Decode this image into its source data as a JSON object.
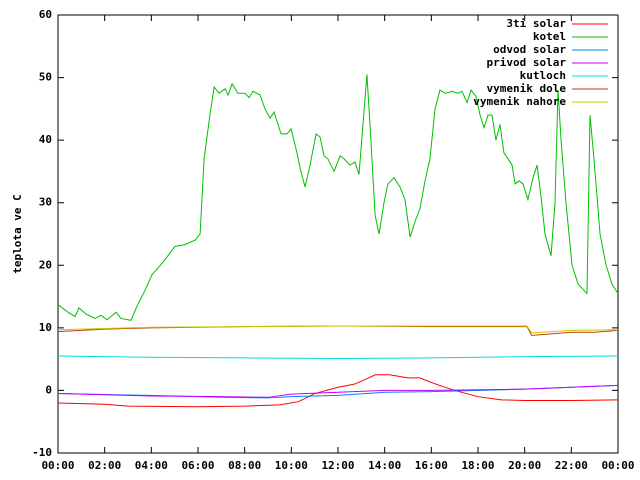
{
  "chart_data": {
    "type": "line",
    "ylabel": "teplota ve C",
    "legend": "top-right",
    "xlim": [
      0,
      24
    ],
    "ylim": [
      -10,
      60
    ],
    "xticks": [
      {
        "value": 0,
        "label": "00:00"
      },
      {
        "value": 2,
        "label": "02:00"
      },
      {
        "value": 4,
        "label": "04:00"
      },
      {
        "value": 6,
        "label": "06:00"
      },
      {
        "value": 8,
        "label": "08:00"
      },
      {
        "value": 10,
        "label": "10:00"
      },
      {
        "value": 12,
        "label": "12:00"
      },
      {
        "value": 14,
        "label": "14:00"
      },
      {
        "value": 16,
        "label": "16:00"
      },
      {
        "value": 18,
        "label": "18:00"
      },
      {
        "value": 20,
        "label": "20:00"
      },
      {
        "value": 22,
        "label": "22:00"
      },
      {
        "value": 24,
        "label": "00:00"
      }
    ],
    "yticks": [
      -10,
      0,
      10,
      20,
      30,
      40,
      50,
      60
    ],
    "series": [
      {
        "name": "3ti solar",
        "color": "#ff0000",
        "x": [
          0,
          2,
          3,
          6,
          8,
          9.5,
          10.3,
          11,
          12,
          12.7,
          13.2,
          13.6,
          14.2,
          15,
          15.5,
          16.2,
          17,
          18,
          19,
          20,
          22,
          24
        ],
        "values": [
          -2,
          -2.2,
          -2.5,
          -2.6,
          -2.5,
          -2.3,
          -1.8,
          -0.5,
          0.5,
          1,
          1.8,
          2.5,
          2.5,
          2,
          2,
          1,
          0,
          -1,
          -1.5,
          -1.6,
          -1.6,
          -1.5
        ]
      },
      {
        "name": "kotel",
        "color": "#00c000",
        "x": [
          0,
          0.43,
          0.73,
          0.9,
          1.2,
          1.59,
          1.84,
          2.1,
          2.49,
          2.7,
          3.13,
          3.39,
          3.73,
          4.03,
          4.5,
          5.01,
          5.44,
          5.87,
          6.09,
          6.26,
          6.51,
          6.69,
          6.9,
          7.16,
          7.29,
          7.46,
          7.71,
          8.01,
          8.19,
          8.36,
          8.66,
          8.87,
          9.09,
          9.26,
          9.56,
          9.81,
          9.99,
          10.24,
          10.41,
          10.59,
          10.8,
          11.06,
          11.23,
          11.4,
          11.57,
          11.83,
          12.09,
          12.26,
          12.51,
          12.73,
          12.9,
          13.24,
          13.41,
          13.59,
          13.76,
          13.97,
          14.14,
          14.4,
          14.66,
          14.87,
          15.09,
          15.3,
          15.51,
          15.73,
          15.94,
          16.16,
          16.37,
          16.59,
          16.89,
          17.14,
          17.31,
          17.53,
          17.7,
          17.91,
          18.09,
          18.26,
          18.43,
          18.6,
          18.77,
          18.94,
          19.11,
          19.29,
          19.46,
          19.59,
          19.76,
          19.93,
          20.14,
          20.36,
          20.53,
          20.7,
          20.87,
          21.13,
          21.3,
          21.43,
          21.56,
          21.77,
          22.03,
          22.29,
          22.67,
          22.8,
          22.97,
          23.23,
          23.49,
          23.74,
          24
        ],
        "values": [
          13.7,
          12.5,
          11.8,
          13.2,
          12.2,
          11.5,
          12,
          11.3,
          12.5,
          11.5,
          11.2,
          13.5,
          16,
          18.5,
          20.5,
          23,
          23.3,
          24,
          25,
          37,
          44,
          48.5,
          47.5,
          48.2,
          47.2,
          49,
          47.5,
          47.5,
          46.8,
          47.8,
          47.2,
          45,
          43.5,
          44.5,
          41,
          41,
          41.8,
          38,
          35,
          32.5,
          36,
          41,
          40.5,
          37.5,
          37,
          35,
          37.5,
          37,
          36,
          36.5,
          34.5,
          50.5,
          40,
          28,
          25,
          30,
          33,
          34,
          32.5,
          30.5,
          24.5,
          27,
          29,
          33.5,
          37,
          45,
          48,
          47.5,
          47.8,
          47.5,
          47.8,
          46,
          48,
          47,
          44,
          42,
          44,
          44,
          40,
          42.5,
          38,
          37,
          36,
          33,
          33.5,
          33,
          30.5,
          34,
          36,
          31,
          25,
          21.5,
          30,
          48,
          40,
          30,
          20,
          17,
          15.5,
          44,
          37,
          25,
          20,
          17,
          15.5
        ]
      },
      {
        "name": "odvod solar",
        "color": "#0080ff",
        "x": [
          0,
          4,
          7,
          9,
          10,
          12,
          14,
          16,
          20,
          24
        ],
        "values": [
          -0.5,
          -0.8,
          -1.1,
          -1.2,
          -1,
          -0.8,
          -0.3,
          -0.2,
          0.2,
          0.8
        ]
      },
      {
        "name": "privod solar",
        "color": "#c000ff",
        "x": [
          0,
          4,
          7,
          9,
          10,
          12,
          14,
          16,
          20,
          24
        ],
        "values": [
          -0.5,
          -0.9,
          -1,
          -1.1,
          -0.6,
          -0.3,
          0,
          0,
          0.2,
          0.8
        ]
      },
      {
        "name": "kutloch",
        "color": "#00e0e0",
        "x": [
          0,
          4,
          8,
          12,
          16,
          20,
          24
        ],
        "values": [
          5.5,
          5.3,
          5.2,
          5.1,
          5.2,
          5.4,
          5.5
        ]
      },
      {
        "name": "vymenik dole",
        "color": "#c04000",
        "x": [
          0,
          2,
          4,
          8,
          12,
          16,
          19,
          20.1,
          20.3,
          21,
          22,
          23,
          24
        ],
        "values": [
          9.4,
          9.8,
          10,
          10.2,
          10.3,
          10.2,
          10.2,
          10.2,
          8.8,
          9,
          9.3,
          9.3,
          9.6
        ]
      },
      {
        "name": "vymenik nahore",
        "color": "#c8c800",
        "x": [
          0,
          2,
          4,
          8,
          12,
          16,
          20.1,
          20.3,
          22,
          24
        ],
        "values": [
          9.7,
          9.9,
          10.1,
          10.2,
          10.3,
          10.3,
          10.3,
          9.2,
          9.6,
          9.7
        ]
      }
    ]
  }
}
